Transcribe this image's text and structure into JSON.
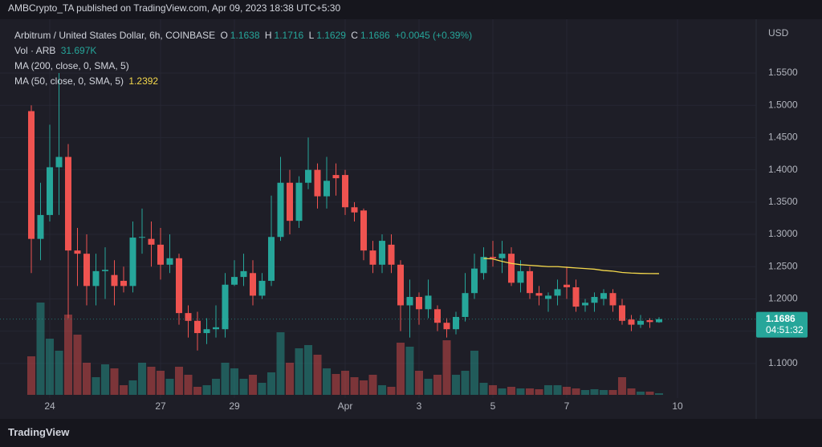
{
  "chart_data": {
    "type": "candlestick",
    "published": "AMBCrypto_TA published on TradingView.com, Apr 09, 2023 18:38 UTC+5:30",
    "title": "Arbitrum / United States Dollar, 6h, COINBASE",
    "ohlc_keys": [
      "O",
      "H",
      "L",
      "C"
    ],
    "change": "+0.0045 (+0.39%)",
    "volume_name": "Vol · ARB",
    "volume_label": "31.697K",
    "ma200_name": "MA (200, close, 0, SMA, 5)",
    "currency": "USD",
    "countdown": "04:51:32",
    "brand": "TradingView",
    "up_color": "#26a69a",
    "down_color": "#ef5350",
    "grid": true,
    "ylim": [
      1.0513,
      1.6259
    ],
    "yticks": [
      {
        "value": 1.1,
        "label": "1.1000"
      },
      {
        "value": 1.15,
        "label": "1.1500"
      },
      {
        "value": 1.2,
        "label": "1.2000"
      },
      {
        "value": 1.25,
        "label": "1.2500"
      },
      {
        "value": 1.3,
        "label": "1.3000"
      },
      {
        "value": 1.35,
        "label": "1.3500"
      },
      {
        "value": 1.4,
        "label": "1.4000"
      },
      {
        "value": 1.45,
        "label": "1.4500"
      },
      {
        "value": 1.5,
        "label": "1.5000"
      },
      {
        "value": 1.55,
        "label": "1.5500"
      }
    ],
    "xticks": [
      {
        "value": 2,
        "label": "24"
      },
      {
        "value": 14,
        "label": "27"
      },
      {
        "value": 22,
        "label": "29"
      },
      {
        "value": 34,
        "label": "Apr"
      },
      {
        "value": 42,
        "label": "3"
      },
      {
        "value": 50,
        "label": "5"
      },
      {
        "value": 58,
        "label": "7"
      },
      {
        "value": 70,
        "label": "10"
      }
    ],
    "open": [
      1.491,
      1.293,
      1.33,
      1.404,
      1.42,
      1.275,
      1.27,
      1.22,
      1.243,
      1.237,
      1.228,
      1.22,
      1.295,
      1.293,
      1.284,
      1.253,
      1.263,
      1.178,
      1.166,
      1.147,
      1.153,
      1.153,
      1.222,
      1.234,
      1.24,
      1.205,
      1.228,
      1.296,
      1.38,
      1.321,
      1.38,
      1.4,
      1.359,
      1.392,
      1.392,
      1.342,
      1.337,
      1.275,
      1.253,
      1.284,
      1.253,
      1.19,
      1.203,
      1.184,
      1.184,
      1.163,
      1.153,
      1.172,
      1.209,
      1.24,
      1.265,
      1.263,
      1.27,
      1.225,
      1.243,
      1.209,
      1.2,
      1.205,
      1.222,
      1.218,
      1.19,
      1.194,
      1.2,
      1.209,
      1.19,
      1.168,
      1.16,
      1.167,
      1.1638
    ],
    "high": [
      1.5,
      1.38,
      1.47,
      1.55,
      1.44,
      1.31,
      1.3,
      1.27,
      1.28,
      1.26,
      1.25,
      1.32,
      1.34,
      1.32,
      1.31,
      1.3,
      1.27,
      1.19,
      1.18,
      1.17,
      1.19,
      1.24,
      1.26,
      1.27,
      1.26,
      1.24,
      1.36,
      1.42,
      1.4,
      1.39,
      1.45,
      1.41,
      1.42,
      1.41,
      1.4,
      1.35,
      1.34,
      1.29,
      1.3,
      1.3,
      1.26,
      1.23,
      1.21,
      1.23,
      1.19,
      1.17,
      1.18,
      1.24,
      1.27,
      1.28,
      1.29,
      1.29,
      1.28,
      1.26,
      1.25,
      1.22,
      1.21,
      1.23,
      1.25,
      1.23,
      1.2,
      1.21,
      1.215,
      1.215,
      1.2,
      1.175,
      1.175,
      1.17,
      1.1716
    ],
    "low": [
      1.24,
      1.26,
      1.32,
      1.33,
      1.17,
      1.22,
      1.19,
      1.19,
      1.2,
      1.19,
      1.21,
      1.21,
      1.27,
      1.25,
      1.23,
      1.24,
      1.16,
      1.14,
      1.12,
      1.13,
      1.14,
      1.14,
      1.22,
      1.22,
      1.19,
      1.2,
      1.22,
      1.29,
      1.3,
      1.31,
      1.37,
      1.34,
      1.34,
      1.36,
      1.33,
      1.32,
      1.26,
      1.24,
      1.24,
      1.24,
      1.15,
      1.14,
      1.16,
      1.17,
      1.15,
      1.14,
      1.145,
      1.165,
      1.2,
      1.23,
      1.25,
      1.24,
      1.22,
      1.21,
      1.2,
      1.19,
      1.18,
      1.19,
      1.2,
      1.18,
      1.18,
      1.18,
      1.19,
      1.18,
      1.16,
      1.15,
      1.155,
      1.155,
      1.1629
    ],
    "close": [
      1.293,
      1.33,
      1.404,
      1.42,
      1.275,
      1.27,
      1.22,
      1.243,
      1.245,
      1.22,
      1.22,
      1.295,
      1.296,
      1.284,
      1.253,
      1.263,
      1.178,
      1.166,
      1.147,
      1.153,
      1.156,
      1.222,
      1.234,
      1.243,
      1.205,
      1.228,
      1.296,
      1.38,
      1.321,
      1.38,
      1.4,
      1.359,
      1.383,
      1.387,
      1.342,
      1.334,
      1.275,
      1.253,
      1.29,
      1.253,
      1.19,
      1.203,
      1.184,
      1.205,
      1.163,
      1.153,
      1.172,
      1.209,
      1.247,
      1.265,
      1.263,
      1.27,
      1.225,
      1.243,
      1.209,
      1.205,
      1.205,
      1.215,
      1.218,
      1.188,
      1.194,
      1.203,
      1.209,
      1.19,
      1.166,
      1.16,
      1.166,
      1.1641,
      1.1686
    ],
    "volume": [
      768000,
      1840000,
      1120000,
      880000,
      1600000,
      1200000,
      640000,
      352000,
      608000,
      528000,
      192000,
      288000,
      640000,
      560000,
      480000,
      320000,
      560000,
      400000,
      160000,
      192000,
      320000,
      640000,
      528000,
      320000,
      400000,
      240000,
      448000,
      1248000,
      640000,
      928000,
      992000,
      800000,
      528000,
      416000,
      480000,
      352000,
      288000,
      400000,
      192000,
      160000,
      1040000,
      960000,
      480000,
      320000,
      400000,
      1088000,
      400000,
      480000,
      880000,
      240000,
      192000,
      128000,
      160000,
      128000,
      128000,
      112000,
      192000,
      192000,
      160000,
      128000,
      96000,
      112000,
      96000,
      96000,
      352000,
      128000,
      64000,
      64000,
      31697
    ],
    "ma": {
      "name": "MA (50, close, 0, SMA, 5)",
      "color": "#f5d94c",
      "values": [
        null,
        null,
        null,
        null,
        null,
        null,
        null,
        null,
        null,
        null,
        null,
        null,
        null,
        null,
        null,
        null,
        null,
        null,
        null,
        null,
        null,
        null,
        null,
        null,
        null,
        null,
        null,
        null,
        null,
        null,
        null,
        null,
        null,
        null,
        null,
        null,
        null,
        null,
        null,
        null,
        null,
        null,
        null,
        null,
        null,
        null,
        null,
        null,
        null,
        1.2627,
        1.262,
        1.258,
        1.255,
        1.253,
        1.252,
        1.251,
        1.25,
        1.25,
        1.249,
        1.248,
        1.247,
        1.246,
        1.244,
        1.243,
        1.241,
        1.24,
        1.2395,
        1.2393,
        1.2392
      ]
    }
  }
}
